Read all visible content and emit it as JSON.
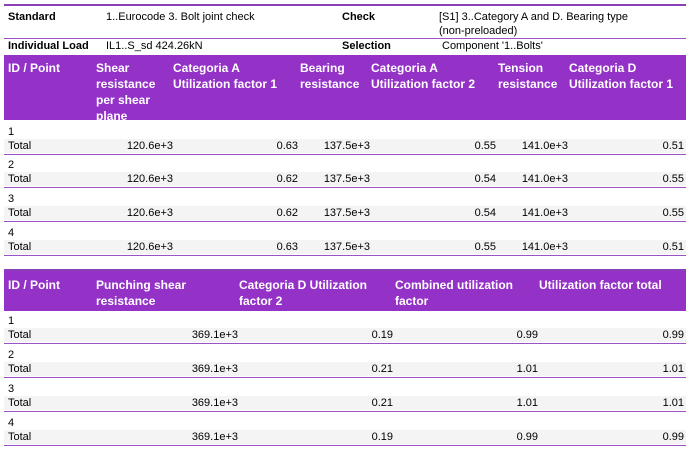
{
  "info": {
    "standard_label": "Standard",
    "standard_value": "1..Eurocode 3. Bolt joint check",
    "check_label": "Check",
    "check_value_line1": "[S1] 3..Category A and D. Bearing type",
    "check_value_line2": "(non-preloaded)",
    "load_label": "Individual Load",
    "load_value": "IL1..S_sd 424.26kN",
    "selection_label": "Selection",
    "selection_value": "Component '1..Bolts'"
  },
  "table1": {
    "headers": [
      "ID / Point",
      "Shear resistance per shear plane",
      "Categoria A Utilization factor 1",
      "Bearing resistance",
      "Categoria A Utilization factor 2",
      "Tension resistance",
      "Categoria D Utilization factor 1"
    ],
    "rows": [
      {
        "id": "1",
        "label": "Total",
        "values": [
          "120.6e+3",
          "0.63",
          "137.5e+3",
          "0.55",
          "141.0e+3",
          "0.51"
        ]
      },
      {
        "id": "2",
        "label": "Total",
        "values": [
          "120.6e+3",
          "0.62",
          "137.5e+3",
          "0.54",
          "141.0e+3",
          "0.55"
        ]
      },
      {
        "id": "3",
        "label": "Total",
        "values": [
          "120.6e+3",
          "0.62",
          "137.5e+3",
          "0.54",
          "141.0e+3",
          "0.55"
        ]
      },
      {
        "id": "4",
        "label": "Total",
        "values": [
          "120.6e+3",
          "0.63",
          "137.5e+3",
          "0.55",
          "141.0e+3",
          "0.51"
        ]
      }
    ]
  },
  "table2": {
    "headers": [
      "ID / Point",
      "Punching shear resistance",
      "Categoria D Utilization factor 2",
      "Combined utilization factor",
      "Utilization factor total"
    ],
    "rows": [
      {
        "id": "1",
        "label": "Total",
        "values": [
          "369.1e+3",
          "0.19",
          "0.99",
          "0.99"
        ]
      },
      {
        "id": "2",
        "label": "Total",
        "values": [
          "369.1e+3",
          "0.21",
          "1.01",
          "1.01"
        ]
      },
      {
        "id": "3",
        "label": "Total",
        "values": [
          "369.1e+3",
          "0.21",
          "1.01",
          "1.01"
        ]
      },
      {
        "id": "4",
        "label": "Total",
        "values": [
          "369.1e+3",
          "0.19",
          "0.99",
          "0.99"
        ]
      }
    ]
  }
}
